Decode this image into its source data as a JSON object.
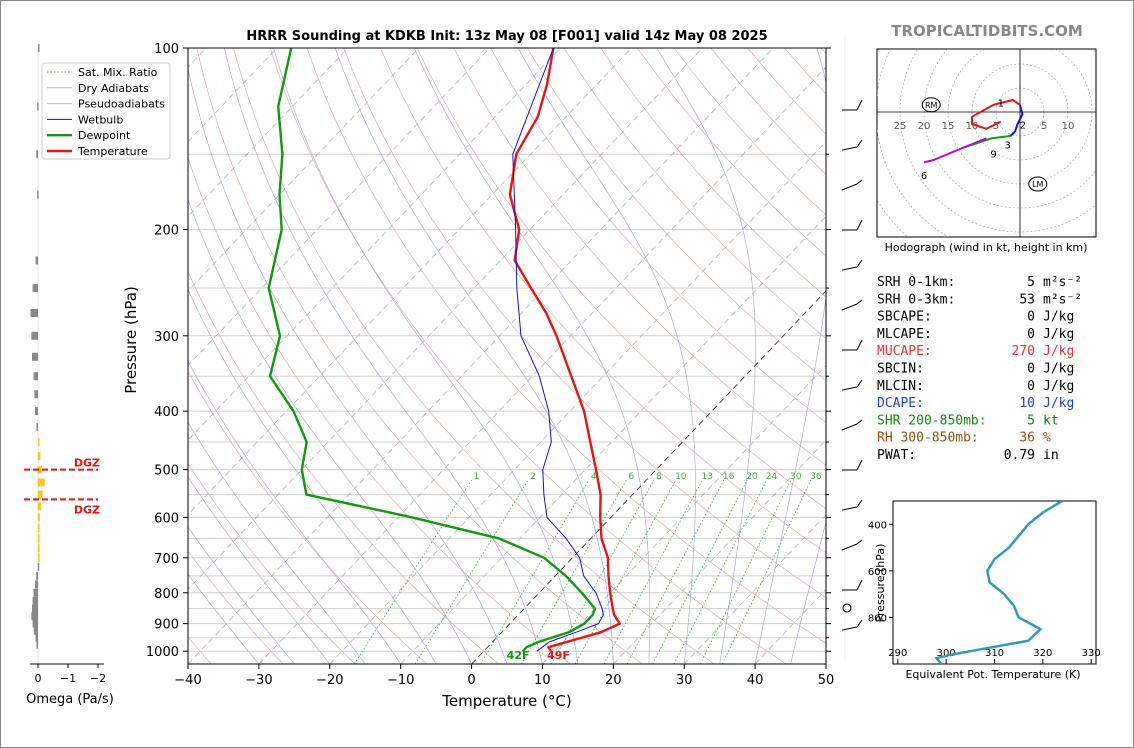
{
  "title": "HRRR Sounding at KDKB Init: 13z May 08 [F001] valid 14z May 08 2025",
  "brand": "TROPICALTIDBITS.COM",
  "colors": {
    "temperature": "#ee1111",
    "dewpoint": "#119911",
    "wetbulb": "#1111ee",
    "dry_adiabat": "#e0a0a0",
    "pseudoadiabat": "#a0a0d8",
    "mixing_ratio": "#44aa44",
    "isotherm": "#222222",
    "hodo_0_1": "#ee1111",
    "hodo_1_3": "#1111ee",
    "hodo_3_6": "#119911",
    "hodo_6_9": "#aa11cc",
    "thetae": "#3399bb",
    "omega_neg": "#f5c518",
    "omega_pos": "#888888",
    "dgz": "#ee1111"
  },
  "chart_data": [
    {
      "type": "line",
      "title": "HRRR Sounding at KDKB Init: 13z May 08 [F001] valid 14z May 08 2025",
      "xlabel": "Temperature (°C)",
      "ylabel": "Pressure (hPa)",
      "xlim": [
        -40,
        50
      ],
      "ylim": [
        1050,
        100
      ],
      "y_scale": "log",
      "skew": true,
      "x_ticks": [
        "−40",
        "−30",
        "−20",
        "−10",
        "0",
        "10",
        "20",
        "30",
        "40",
        "50"
      ],
      "y_ticks": [
        "100",
        "200",
        "300",
        "400",
        "500",
        "600",
        "700",
        "800",
        "900",
        "1000"
      ],
      "legend": {
        "position": "top-left",
        "entries": [
          "Sat. Mix. Ratio",
          "Dry Adiabats",
          "Pseudoadiabats",
          "Wetbulb",
          "Dewpoint",
          "Temperature"
        ]
      },
      "mixing_ratio_labels": [
        "1",
        "2",
        "4",
        "6",
        "8",
        "10",
        "13",
        "16",
        "20",
        "24",
        "30",
        "36"
      ],
      "surface_labels": {
        "dewpoint": "42F",
        "temperature": "49F"
      },
      "series": [
        {
          "name": "Temperature",
          "points": [
            [
              1000,
              9.5
            ],
            [
              985,
              8.6
            ],
            [
              965,
              10.5
            ],
            [
              930,
              14
            ],
            [
              900,
              15.5
            ],
            [
              870,
              13.5
            ],
            [
              850,
              12.5
            ],
            [
              800,
              10.0
            ],
            [
              750,
              7.5
            ],
            [
              700,
              5.0
            ],
            [
              650,
              1.5
            ],
            [
              600,
              -1.5
            ],
            [
              550,
              -4.5
            ],
            [
              500,
              -8.5
            ],
            [
              450,
              -13.0
            ],
            [
              400,
              -18.0
            ],
            [
              350,
              -24.5
            ],
            [
              300,
              -32.0
            ],
            [
              275,
              -36.5
            ],
            [
              250,
              -42.0
            ],
            [
              225,
              -48.0
            ],
            [
              200,
              -51.5
            ],
            [
              175,
              -57.5
            ],
            [
              150,
              -62.0
            ],
            [
              130,
              -64.0
            ],
            [
              115,
              -67.0
            ],
            [
              100,
              -71.0
            ]
          ]
        },
        {
          "name": "Dewpoint",
          "points": [
            [
              1000,
              5.5
            ],
            [
              985,
              5.5
            ],
            [
              965,
              6.5
            ],
            [
              930,
              9.5
            ],
            [
              900,
              10.5
            ],
            [
              870,
              10.5
            ],
            [
              850,
              10.0
            ],
            [
              800,
              6.0
            ],
            [
              750,
              1.5
            ],
            [
              700,
              -4.0
            ],
            [
              650,
              -13.0
            ],
            [
              600,
              -28.0
            ],
            [
              550,
              -46.0
            ],
            [
              500,
              -50.0
            ],
            [
              450,
              -53.0
            ],
            [
              400,
              -59.0
            ],
            [
              350,
              -67.0
            ],
            [
              300,
              -71.0
            ],
            [
              250,
              -79.0
            ],
            [
              200,
              -85.0
            ],
            [
              175,
              -90.0
            ],
            [
              150,
              -95.0
            ],
            [
              125,
              -102.0
            ],
            [
              100,
              -108.0
            ]
          ]
        },
        {
          "name": "Wetbulb",
          "points": [
            [
              1000,
              7.5
            ],
            [
              965,
              8.0
            ],
            [
              930,
              10.5
            ],
            [
              900,
              12.5
            ],
            [
              870,
              12.0
            ],
            [
              850,
              11.0
            ],
            [
              800,
              8.0
            ],
            [
              750,
              4.0
            ],
            [
              700,
              1.0
            ],
            [
              650,
              -3.5
            ],
            [
              600,
              -9.0
            ],
            [
              550,
              -12.5
            ],
            [
              500,
              -16.0
            ],
            [
              450,
              -18.5
            ],
            [
              400,
              -23.0
            ],
            [
              350,
              -29.0
            ],
            [
              300,
              -37.0
            ],
            [
              250,
              -44.0
            ],
            [
              200,
              -52.0
            ],
            [
              150,
              -62.5
            ],
            [
              100,
              -71.0
            ]
          ]
        }
      ]
    },
    {
      "type": "line",
      "title": "Hodograph (wind in kt, height in km)",
      "ring_labels": [
        "25",
        "20",
        "15",
        "10",
        "5",
        "5",
        "10"
      ],
      "markers": [
        "RM",
        "LM"
      ],
      "height_labels": [
        "1",
        "2",
        "3",
        "6",
        "9"
      ],
      "series": [
        {
          "name": "0-1 km",
          "points": [
            [
              -4,
              -2
            ],
            [
              -7,
              -3.5
            ],
            [
              -10,
              -2.5
            ],
            [
              -10,
              -1
            ],
            [
              -5.5,
              1.5
            ],
            [
              -1.5,
              2.5
            ],
            [
              0,
              1.5
            ]
          ]
        },
        {
          "name": "1-3 km",
          "points": [
            [
              0,
              1.5
            ],
            [
              0.5,
              -0.5
            ],
            [
              -0.5,
              -2.5
            ],
            [
              -1,
              -4
            ],
            [
              -2,
              -5
            ]
          ]
        },
        {
          "name": "3-6 km",
          "points": [
            [
              -2,
              -5
            ],
            [
              -6,
              -5.5
            ],
            [
              -9,
              -6.5
            ],
            [
              -12,
              -7.5
            ]
          ]
        },
        {
          "name": "6-9 km",
          "points": [
            [
              -7,
              -5.5
            ],
            [
              -12,
              -7.5
            ],
            [
              -18,
              -10
            ],
            [
              -20,
              -10.5
            ]
          ]
        }
      ]
    },
    {
      "type": "line",
      "xlabel": "Equivalent Pot. Temperature (K)",
      "ylabel": "Pressure (hPa)",
      "xlim": [
        289,
        331
      ],
      "ylim": [
        1000,
        300
      ],
      "x_ticks": [
        "290",
        "300",
        "310",
        "320",
        "330"
      ],
      "y_ticks": [
        "400",
        "600",
        "800"
      ],
      "series": [
        {
          "name": "Theta-E",
          "points": [
            [
              1000,
              299
            ],
            [
              975,
              298
            ],
            [
              960,
              301
            ],
            [
              900,
              317
            ],
            [
              850,
              319.5
            ],
            [
              800,
              315
            ],
            [
              750,
              314
            ],
            [
              700,
              312
            ],
            [
              650,
              309
            ],
            [
              600,
              308.5
            ],
            [
              550,
              310
            ],
            [
              500,
              313
            ],
            [
              450,
              315
            ],
            [
              400,
              317
            ],
            [
              350,
              320
            ],
            [
              300,
              324
            ]
          ]
        }
      ]
    },
    {
      "type": "bar",
      "xlabel": "Omega (Pa/s)",
      "x_ticks": [
        "0",
        "−1",
        "−2"
      ],
      "dgz_label": "DGZ",
      "dgz_pressures": [
        500,
        560
      ],
      "pressures": [
        100,
        125,
        150,
        175,
        225,
        250,
        275,
        300,
        325,
        350,
        375,
        400,
        425,
        450,
        475,
        500,
        525,
        550,
        575,
        600,
        625,
        650,
        675,
        700,
        725,
        750,
        775,
        800,
        825,
        850,
        875,
        900,
        925,
        950,
        975
      ],
      "values": [
        0.0,
        0.03,
        0.06,
        0.03,
        0.08,
        0.18,
        0.25,
        0.22,
        0.2,
        0.15,
        0.12,
        0.1,
        0.05,
        -0.05,
        -0.08,
        -0.12,
        -0.22,
        -0.15,
        -0.1,
        -0.06,
        -0.05,
        -0.04,
        -0.03,
        -0.02,
        0.01,
        0.06,
        0.1,
        0.15,
        0.18,
        0.2,
        0.22,
        0.18,
        0.14,
        0.08,
        0.05
      ]
    }
  ],
  "indices": [
    {
      "label": "SRH 0-1km:",
      "value": "5",
      "unit": "m²s⁻²",
      "color": "#000000"
    },
    {
      "label": "SRH 0-3km:",
      "value": "53",
      "unit": "m²s⁻²",
      "color": "#000000"
    },
    {
      "label": "SBCAPE:",
      "value": "0",
      "unit": "J/kg",
      "color": "#000000"
    },
    {
      "label": "MLCAPE:",
      "value": "0",
      "unit": "J/kg",
      "color": "#000000"
    },
    {
      "label": "MUCAPE:",
      "value": "270",
      "unit": "J/kg",
      "color": "#e83030"
    },
    {
      "label": "SBCIN:",
      "value": "0",
      "unit": "J/kg",
      "color": "#000000"
    },
    {
      "label": "MLCIN:",
      "value": "0",
      "unit": "J/kg",
      "color": "#000000"
    },
    {
      "label": "DCAPE:",
      "value": "10",
      "unit": "J/kg",
      "color": "#2040e0"
    },
    {
      "label": "SHR 200-850mb:",
      "value": "5",
      "unit": "kt",
      "color": "#118811"
    },
    {
      "label": "RH 300-850mb:",
      "value": "36",
      "unit": "%",
      "color": "#885511"
    },
    {
      "label": "PWAT:",
      "value": "0.79",
      "unit": "in",
      "color": "#000000"
    }
  ]
}
